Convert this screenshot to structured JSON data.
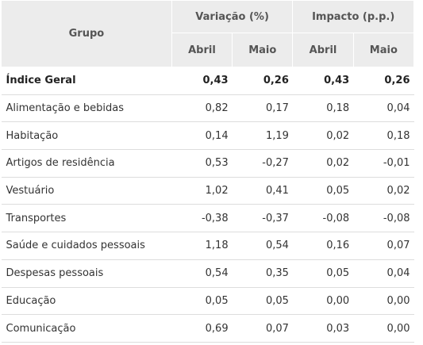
{
  "header": {
    "group": "Grupo",
    "variation": "Variação (%)",
    "impact": "Impacto (p.p.)",
    "month1": "Abril",
    "month2": "Maio"
  },
  "rows": [
    {
      "group": "Índice Geral",
      "var_abril": "0,43",
      "var_maio": "0,26",
      "imp_abril": "0,43",
      "imp_maio": "0,26"
    },
    {
      "group": "Alimentação e bebidas",
      "var_abril": "0,82",
      "var_maio": "0,17",
      "imp_abril": "0,18",
      "imp_maio": "0,04"
    },
    {
      "group": "Habitação",
      "var_abril": "0,14",
      "var_maio": "1,19",
      "imp_abril": "0,02",
      "imp_maio": "0,18"
    },
    {
      "group": "Artigos de residência",
      "var_abril": "0,53",
      "var_maio": "-0,27",
      "imp_abril": "0,02",
      "imp_maio": "-0,01"
    },
    {
      "group": "Vestuário",
      "var_abril": "1,02",
      "var_maio": "0,41",
      "imp_abril": "0,05",
      "imp_maio": "0,02"
    },
    {
      "group": "Transportes",
      "var_abril": "-0,38",
      "var_maio": "-0,37",
      "imp_abril": "-0,08",
      "imp_maio": "-0,08"
    },
    {
      "group": "Saúde e cuidados pessoais",
      "var_abril": "1,18",
      "var_maio": "0,54",
      "imp_abril": "0,16",
      "imp_maio": "0,07"
    },
    {
      "group": "Despesas pessoais",
      "var_abril": "0,54",
      "var_maio": "0,35",
      "imp_abril": "0,05",
      "imp_maio": "0,04"
    },
    {
      "group": "Educação",
      "var_abril": "0,05",
      "var_maio": "0,05",
      "imp_abril": "0,00",
      "imp_maio": "0,00"
    },
    {
      "group": "Comunicação",
      "var_abril": "0,69",
      "var_maio": "0,07",
      "imp_abril": "0,03",
      "imp_maio": "0,00"
    }
  ]
}
